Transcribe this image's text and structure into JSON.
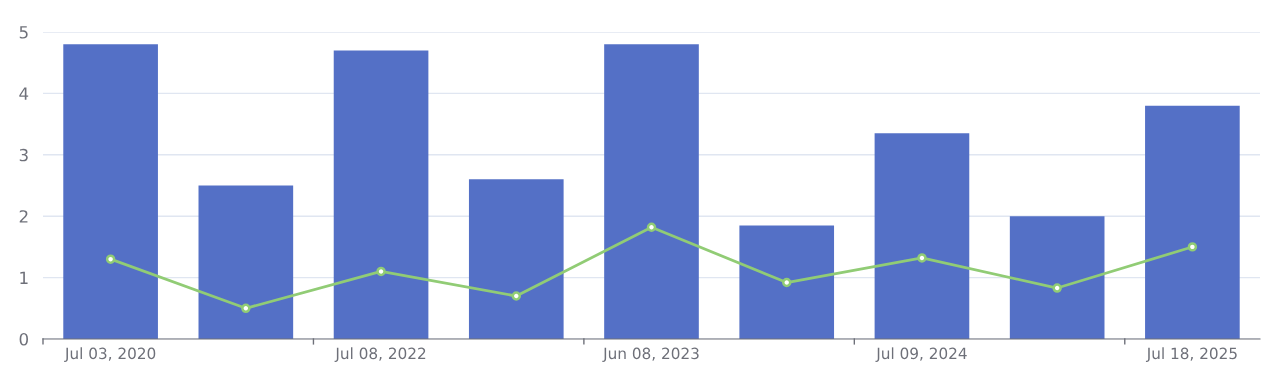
{
  "chart_data": {
    "type": "bar",
    "categories": [
      "Jul 03, 2020",
      null,
      "Jul 08, 2022",
      null,
      "Jun 08, 2023",
      null,
      "Jul 09, 2024",
      null,
      "Jul 18, 2025"
    ],
    "series": [
      {
        "color": "#5470c6",
        "values": [
          4.8,
          2.5,
          4.7,
          2.6,
          4.8,
          1.85,
          3.35,
          2.0,
          3.8
        ]
      },
      {
        "type": "line",
        "color": "#91cc75",
        "marker": "circle",
        "values": [
          1.3,
          0.5,
          1.1,
          0.7,
          1.82,
          0.92,
          1.32,
          0.83,
          1.5
        ]
      }
    ],
    "ylim": [
      0,
      5
    ],
    "yticks": [
      0,
      1,
      2,
      3,
      4,
      5
    ],
    "grid": "y"
  }
}
